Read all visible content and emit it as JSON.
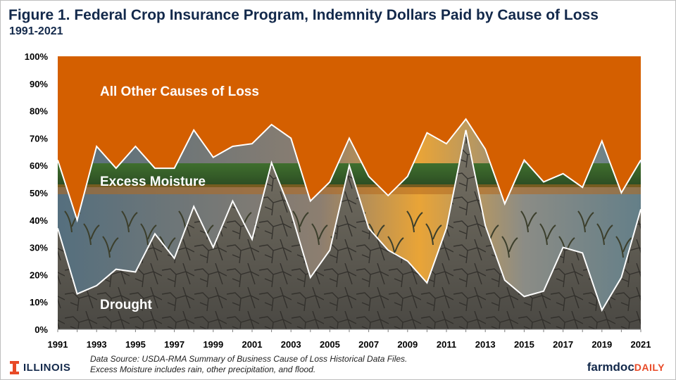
{
  "header": {
    "title": "Figure 1. Federal Crop Insurance Program, Indemnity Dollars Paid by Cause of Loss",
    "subtitle": "1991-2021"
  },
  "footer": {
    "source_note": "Data Source: USDA-RMA Summary of Business Cause of Loss Historical Data Files.",
    "moisture_note": "Excess Moisture includes rain, other precipitation, and flood.",
    "left_logo": "ILLINOIS",
    "right_logo_main": "farmdoc",
    "right_logo_accent": "DAILY"
  },
  "colors": {
    "other": "#d45f00",
    "moisture_overlay": "#5f7d86",
    "drought_ground": "#6b6860",
    "line": "#ffffff",
    "brand_navy": "#13294b",
    "brand_orange": "#e84a27"
  },
  "chart_data": {
    "type": "area",
    "stacked": true,
    "percent": true,
    "x": [
      1991,
      1992,
      1993,
      1994,
      1995,
      1996,
      1997,
      1998,
      1999,
      2000,
      2001,
      2002,
      2003,
      2004,
      2005,
      2006,
      2007,
      2008,
      2009,
      2010,
      2011,
      2012,
      2013,
      2014,
      2015,
      2016,
      2017,
      2018,
      2019,
      2020,
      2021
    ],
    "x_tick_labels": [
      "1991",
      "1993",
      "1995",
      "1997",
      "1999",
      "2001",
      "2003",
      "2005",
      "2007",
      "2009",
      "2011",
      "2013",
      "2015",
      "2017",
      "2019",
      "2021"
    ],
    "y_tick_labels": [
      "0%",
      "10%",
      "20%",
      "30%",
      "40%",
      "50%",
      "60%",
      "70%",
      "80%",
      "90%",
      "100%"
    ],
    "ylim": [
      0,
      100
    ],
    "series": [
      {
        "name": "Drought",
        "values": [
          37,
          13,
          16,
          22,
          21,
          35,
          26,
          45,
          30,
          47,
          33,
          61,
          43,
          19,
          29,
          60,
          37,
          29,
          25,
          17,
          37,
          73,
          38,
          18,
          12,
          14,
          30,
          28,
          7,
          19,
          44
        ]
      },
      {
        "name": "Excess Moisture",
        "values": [
          25,
          27,
          51,
          37,
          46,
          24,
          33,
          28,
          33,
          20,
          35,
          14,
          27,
          28,
          25,
          10,
          19,
          20,
          31,
          55,
          31,
          4,
          28,
          28,
          50,
          40,
          27,
          24,
          62,
          31,
          18
        ]
      },
      {
        "name": "All Other Causes of Loss",
        "values": [
          38,
          60,
          33,
          41,
          33,
          41,
          41,
          27,
          37,
          33,
          32,
          25,
          30,
          53,
          46,
          30,
          44,
          51,
          44,
          28,
          32,
          23,
          34,
          54,
          38,
          46,
          43,
          48,
          31,
          50,
          38
        ]
      }
    ],
    "area_labels": [
      "All Other Causes of Loss",
      "Excess Moisture",
      "Drought"
    ],
    "grid": false,
    "legend": "none (labels on areas)"
  }
}
